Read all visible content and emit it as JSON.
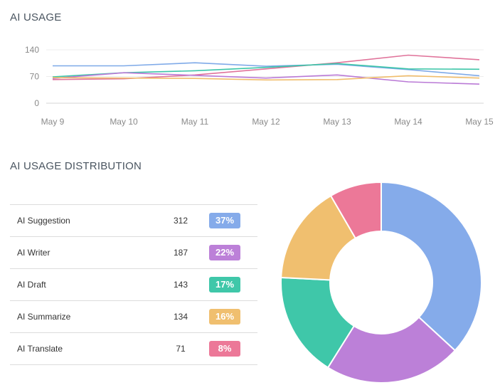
{
  "usage_title": "AI USAGE",
  "distribution_title": "AI USAGE DISTRIBUTION",
  "chart_data": [
    {
      "type": "line",
      "title": "AI USAGE",
      "x": [
        "May 9",
        "May 10",
        "May 11",
        "May 12",
        "May 13",
        "May 14",
        "May 15"
      ],
      "yticks": [
        0,
        70,
        140
      ],
      "ylim": [
        0,
        140
      ],
      "grid": true,
      "series": [
        {
          "color": "#7faae8",
          "values": [
            98,
            98,
            106,
            97,
            102,
            88,
            72
          ]
        },
        {
          "color": "#e0739a",
          "values": [
            62,
            64,
            74,
            90,
            106,
            126,
            114
          ]
        },
        {
          "color": "#3dc6a8",
          "values": [
            69,
            80,
            85,
            94,
            104,
            90,
            89
          ]
        },
        {
          "color": "#ba7ad6",
          "values": [
            65,
            80,
            73,
            66,
            74,
            56,
            50
          ]
        },
        {
          "color": "#f0bd6c",
          "values": [
            67,
            66,
            65,
            61,
            62,
            72,
            66
          ]
        }
      ]
    },
    {
      "type": "pie",
      "title": "AI USAGE DISTRIBUTION",
      "categories": [
        "AI Suggestion",
        "AI Writer",
        "AI Draft",
        "AI Summarize",
        "AI Translate"
      ],
      "values": [
        312,
        187,
        143,
        134,
        71
      ],
      "percent_labels": [
        "37%",
        "22%",
        "17%",
        "16%",
        "8%"
      ],
      "colors": [
        "#85abea",
        "#bc80d8",
        "#3fc7a9",
        "#f0bf6f",
        "#ec7898"
      ]
    }
  ]
}
